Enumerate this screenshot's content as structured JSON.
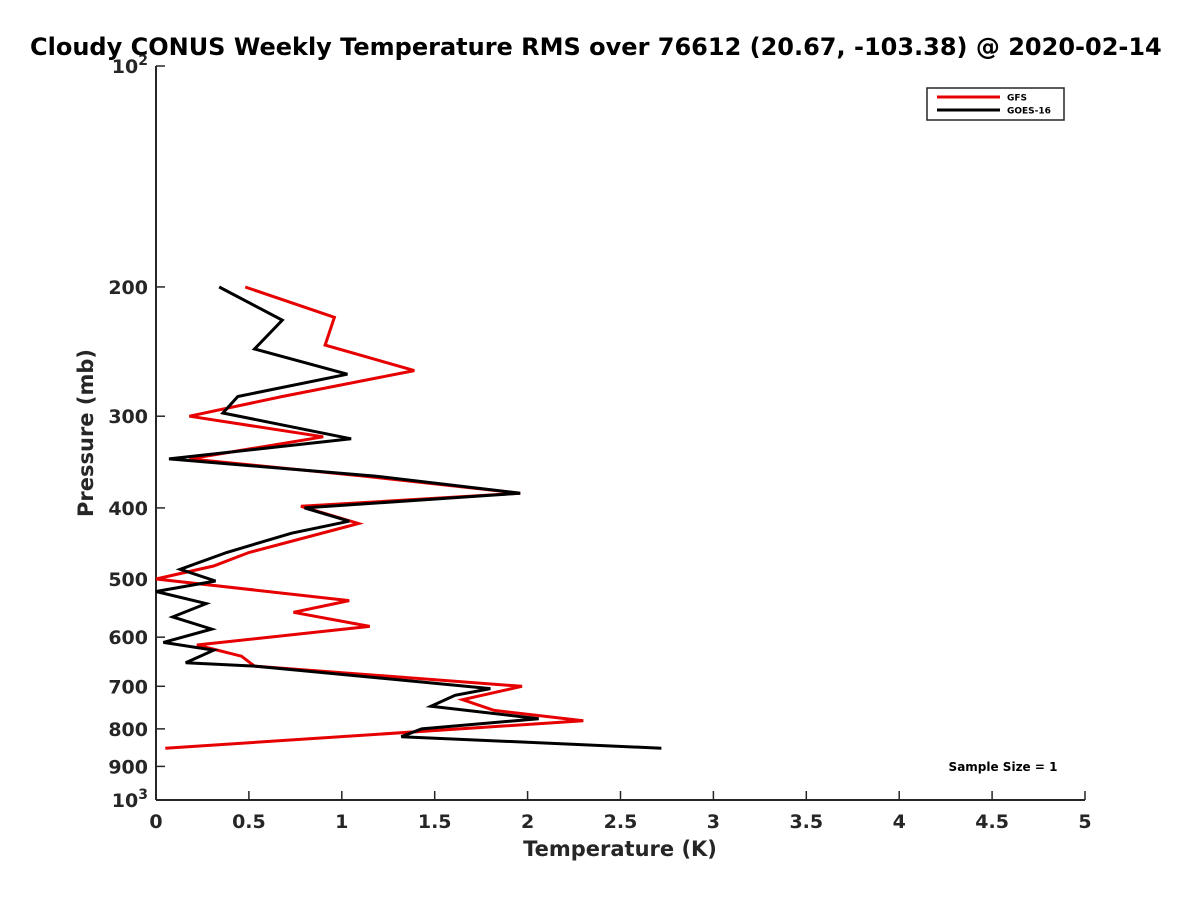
{
  "chart_data": {
    "type": "line",
    "title": "Cloudy CONUS Weekly Temperature RMS over 76612 (20.67, -103.38) @ 2020-02-14",
    "xlabel": "Temperature (K)",
    "ylabel": "Pressure (mb)",
    "xlim": [
      0,
      5
    ],
    "ylim": [
      100,
      1000
    ],
    "yscale": "log",
    "y_reversed": true,
    "grid": false,
    "legend_position": "top-right",
    "x_ticks": [
      0,
      0.5,
      1,
      1.5,
      2,
      2.5,
      3,
      3.5,
      4,
      4.5,
      5
    ],
    "x_tick_labels": [
      "0",
      "0.5",
      "1",
      "1.5",
      "2",
      "2.5",
      "3",
      "3.5",
      "4",
      "4.5",
      "5"
    ],
    "y_ticks": [
      100,
      200,
      300,
      400,
      500,
      600,
      700,
      800,
      900,
      1000
    ],
    "y_tick_labels": [
      {
        "base": "10",
        "exp": "2"
      },
      {
        "base": "200",
        "exp": ""
      },
      {
        "base": "300",
        "exp": ""
      },
      {
        "base": "400",
        "exp": ""
      },
      {
        "base": "500",
        "exp": ""
      },
      {
        "base": "600",
        "exp": ""
      },
      {
        "base": "700",
        "exp": ""
      },
      {
        "base": "800",
        "exp": ""
      },
      {
        "base": "900",
        "exp": ""
      },
      {
        "base": "10",
        "exp": "3"
      }
    ],
    "annotation": "Sample Size = 1",
    "series": [
      {
        "name": "GFS",
        "color": "#e60000",
        "points": [
          [
            0.48,
            200
          ],
          [
            0.96,
            220
          ],
          [
            0.91,
            240
          ],
          [
            1.39,
            260
          ],
          [
            0.68,
            282
          ],
          [
            0.18,
            300
          ],
          [
            0.9,
            320
          ],
          [
            0.18,
            343
          ],
          [
            1.12,
            362
          ],
          [
            1.96,
            382
          ],
          [
            0.78,
            398
          ],
          [
            1.09,
            420
          ],
          [
            0.5,
            460
          ],
          [
            0.31,
            480
          ],
          [
            0.0,
            500
          ],
          [
            1.04,
            535
          ],
          [
            0.74,
            555
          ],
          [
            1.15,
            580
          ],
          [
            0.22,
            615
          ],
          [
            0.46,
            637
          ],
          [
            0.53,
            657
          ],
          [
            1.97,
            700
          ],
          [
            1.65,
            730
          ],
          [
            1.82,
            755
          ],
          [
            2.3,
            780
          ],
          [
            0.05,
            850
          ]
        ]
      },
      {
        "name": "GOES-16",
        "color": "#000000",
        "points": [
          [
            0.34,
            200
          ],
          [
            0.68,
            222
          ],
          [
            0.53,
            243
          ],
          [
            1.03,
            263
          ],
          [
            0.44,
            282
          ],
          [
            0.36,
            297
          ],
          [
            1.05,
            322
          ],
          [
            0.07,
            343
          ],
          [
            1.18,
            362
          ],
          [
            1.96,
            382
          ],
          [
            0.8,
            400
          ],
          [
            1.04,
            417
          ],
          [
            0.73,
            433
          ],
          [
            0.38,
            460
          ],
          [
            0.13,
            485
          ],
          [
            0.32,
            503
          ],
          [
            0.0,
            520
          ],
          [
            0.27,
            540
          ],
          [
            0.09,
            563
          ],
          [
            0.3,
            585
          ],
          [
            0.04,
            610
          ],
          [
            0.31,
            625
          ],
          [
            0.16,
            650
          ],
          [
            0.53,
            657
          ],
          [
            1.8,
            705
          ],
          [
            1.61,
            720
          ],
          [
            1.48,
            745
          ],
          [
            2.06,
            775
          ],
          [
            1.43,
            800
          ],
          [
            1.32,
            820
          ],
          [
            2.72,
            850
          ]
        ]
      }
    ]
  }
}
